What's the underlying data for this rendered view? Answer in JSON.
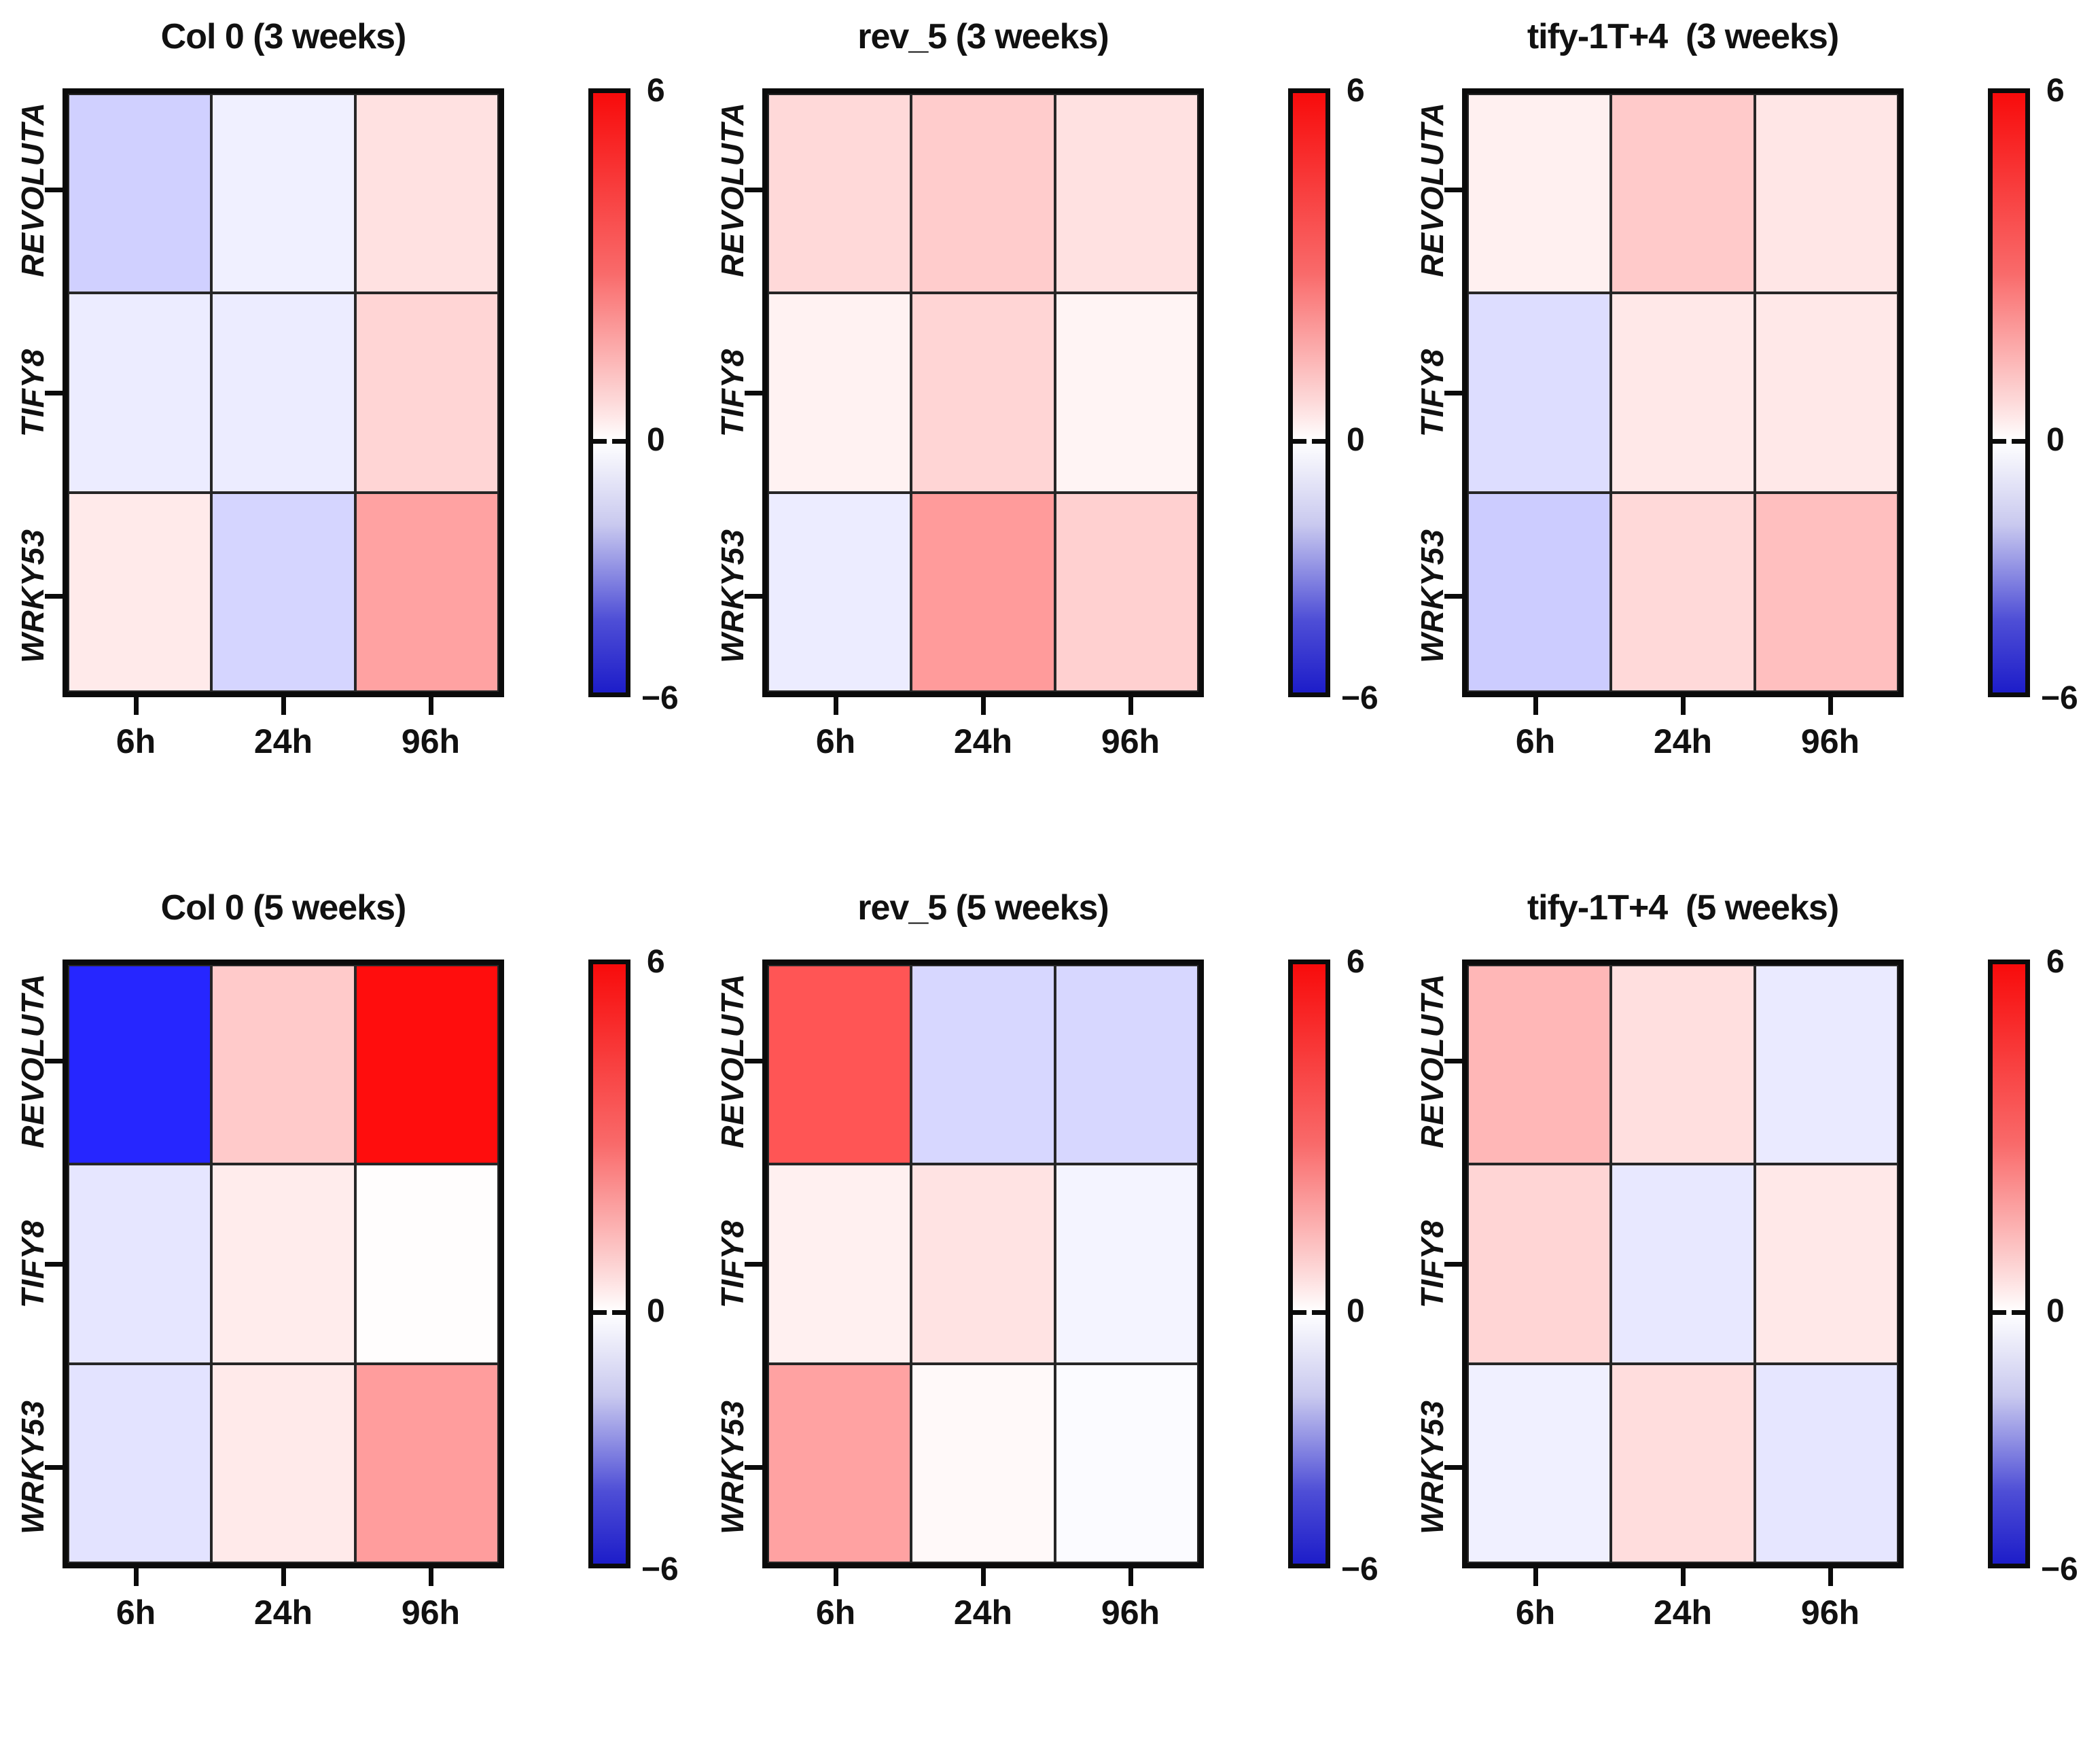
{
  "figure": {
    "colorbar": {
      "max_label": "6",
      "zero_label": "0",
      "min_label": "−6"
    }
  },
  "chart_data": {
    "type": "heatmap",
    "colormap": "blue-white-red",
    "value_range": [
      -6,
      6
    ],
    "colorbar_ticks": [
      6,
      0,
      -6
    ],
    "zero_position_fraction_from_top": 0.58,
    "x_categories": [
      "6h",
      "24h",
      "96h"
    ],
    "y_categories": [
      "REVOLUTA",
      "TIFY8",
      "WRKY53"
    ],
    "colors": {
      "max": "#fb0d0d",
      "zero": "#ffffff",
      "min": "#1d1dc9"
    },
    "panels": [
      {
        "title": "Col 0 (3 weeks)",
        "values": [
          [
            -1.1,
            -0.35,
            0.7
          ],
          [
            -0.45,
            -0.45,
            1.0
          ],
          [
            0.5,
            -1.0,
            2.2
          ]
        ]
      },
      {
        "title": "rev_5 (3 weeks)",
        "values": [
          [
            0.9,
            1.2,
            0.7
          ],
          [
            0.3,
            1.0,
            0.25
          ],
          [
            -0.45,
            2.35,
            1.1
          ]
        ]
      },
      {
        "title": "tify-1T+4  (3 weeks)",
        "values": [
          [
            0.35,
            1.25,
            0.6
          ],
          [
            -0.8,
            0.55,
            0.55
          ],
          [
            -1.2,
            0.9,
            1.5
          ]
        ]
      },
      {
        "title": "Col 0 (5 weeks)",
        "values": [
          [
            -5.1,
            1.25,
            5.7
          ],
          [
            -0.6,
            0.45,
            0.05
          ],
          [
            -0.65,
            0.5,
            2.3
          ]
        ]
      },
      {
        "title": "rev_5 (5 weeks)",
        "values": [
          [
            4.0,
            -0.95,
            -0.95
          ],
          [
            0.35,
            0.65,
            -0.25
          ],
          [
            2.2,
            0.15,
            -0.1
          ]
        ]
      },
      {
        "title": "tify-1T+4  (5 weeks)",
        "values": [
          [
            1.7,
            0.75,
            -0.5
          ],
          [
            1.0,
            -0.55,
            0.55
          ],
          [
            -0.35,
            0.8,
            -0.6
          ]
        ]
      }
    ]
  }
}
